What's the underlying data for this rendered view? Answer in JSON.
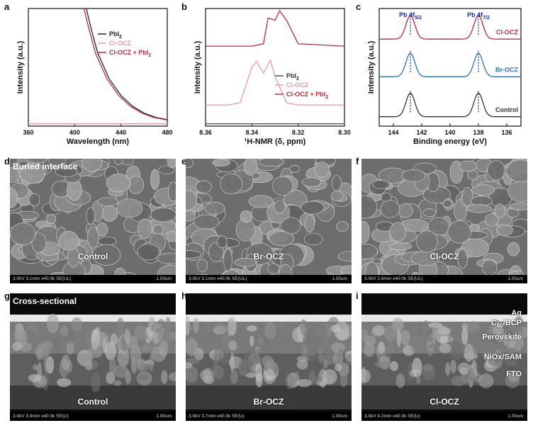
{
  "panels": {
    "a": "a",
    "b": "b",
    "c": "c",
    "d": "d",
    "e": "e",
    "f": "f",
    "g": "g",
    "h": "h",
    "i": "i"
  },
  "chart_data": [
    {
      "type": "line",
      "xlabel": "Wavelength (nm)",
      "ylabel": "Intensity (a.u.)",
      "xlim": [
        360,
        480
      ],
      "xticks": [
        "360",
        "400",
        "440",
        "480"
      ],
      "legend_position": "top-right",
      "series": [
        {
          "name": "PbI",
          "sub": "2",
          "color": "#222222",
          "x": [
            410,
            415,
            420,
            430,
            440,
            450,
            460,
            470,
            480
          ],
          "y": [
            1.0,
            0.8,
            0.62,
            0.4,
            0.26,
            0.17,
            0.11,
            0.075,
            0.055
          ]
        },
        {
          "name": "Cl-OCZ",
          "sub": "",
          "color": "#e89aa6",
          "x": [
            360,
            365,
            380,
            400,
            440,
            480
          ],
          "y": [
            0.02,
            0.02,
            0.02,
            0.02,
            0.02,
            0.02
          ]
        },
        {
          "name": "Cl-OCZ + PbI",
          "sub": "2",
          "color": "#c0283c",
          "x": [
            408,
            413,
            418,
            428,
            438,
            448,
            458,
            468,
            480
          ],
          "y": [
            1.0,
            0.8,
            0.62,
            0.4,
            0.26,
            0.17,
            0.11,
            0.075,
            0.052
          ]
        }
      ]
    },
    {
      "type": "line",
      "xlabel": "¹H-NMR (δ, ppm)",
      "ylabel": "Intensity (a.u.)",
      "xlim": [
        8.36,
        8.3
      ],
      "xticks": [
        "8.36",
        "8.34",
        "8.32",
        "8.30"
      ],
      "legend_position": "bottom-right",
      "series": [
        {
          "name": "PbI",
          "sub": "2",
          "color": "#555555",
          "x": [
            8.36,
            8.3
          ],
          "y": [
            0.02,
            0.02
          ]
        },
        {
          "name": "Cl-OCZ",
          "sub": "",
          "color": "#e89aa6",
          "x": [
            8.36,
            8.35,
            8.345,
            8.34,
            8.338,
            8.335,
            8.332,
            8.33,
            8.325,
            8.32,
            8.3
          ],
          "y": [
            0.18,
            0.18,
            0.2,
            0.5,
            0.55,
            0.45,
            0.56,
            0.42,
            0.2,
            0.18,
            0.18
          ]
        },
        {
          "name": "Cl-OCZ + PbI",
          "sub": "2",
          "color": "#c0283c",
          "x": [
            8.36,
            8.34,
            8.335,
            8.333,
            8.33,
            8.328,
            8.325,
            8.32,
            8.3
          ],
          "y": [
            0.68,
            0.68,
            0.7,
            0.92,
            0.9,
            0.98,
            0.9,
            0.7,
            0.68
          ]
        }
      ]
    },
    {
      "type": "line",
      "xlabel": "Binding energy (eV)",
      "ylabel": "Intensity (a.u.)",
      "xlim": [
        145,
        135
      ],
      "xticks": [
        "144",
        "142",
        "140",
        "138",
        "136"
      ],
      "annotations": [
        {
          "text": "Pb 4f",
          "sub": "5/2",
          "x": 142.8
        },
        {
          "text": "Pb 4f",
          "sub": "7/2",
          "x": 138.0
        }
      ],
      "series": [
        {
          "name": "Cl-OCZ",
          "sub": "",
          "color": "#c0283c",
          "peaks": [
            142.8,
            138.0
          ],
          "offset": 0.72
        },
        {
          "name": "Br-OCZ",
          "sub": "",
          "color": "#2a6ebf",
          "peaks": [
            142.8,
            138.0
          ],
          "offset": 0.4
        },
        {
          "name": "Control",
          "sub": "",
          "color": "#333333",
          "peaks": [
            142.8,
            138.0
          ],
          "offset": 0.06
        }
      ]
    }
  ],
  "sem_top": [
    {
      "corner": "Buried interface",
      "label": "Control",
      "footer": "3.0kV 3.1mm x40.0k SE(UL)",
      "scale": "1.00um"
    },
    {
      "corner": "",
      "label": "Br-OCZ",
      "footer": "3.0kV 3.1mm x40.0k SE(UL)",
      "scale": "1.00um"
    },
    {
      "corner": "",
      "label": "Cl-OCZ",
      "footer": "3.0kV 2.8mm x40.0k SE(UL)",
      "scale": "1.00um"
    }
  ],
  "sem_bottom": [
    {
      "corner": "Cross-sectional",
      "label": "Control",
      "footer": "3.0kV 3.9mm x40.0k SE(U)",
      "scale": "1.00um"
    },
    {
      "corner": "",
      "label": "Br-OCZ",
      "footer": "3.0kV 3.7mm x40.0k SE(U)",
      "scale": "1.00um"
    },
    {
      "corner": "",
      "label": "Cl-OCZ",
      "footer": "3.0kV 4.2mm x40.0k SE(U)",
      "scale": "1.00um"
    }
  ],
  "layers": {
    "ag": "Ag",
    "c60_pre": "C",
    "c60_sub": "60",
    "c60_post": "/BCP",
    "perovskite": "Perovskite",
    "niox": "NiOx/SAM",
    "fto": "FTO"
  }
}
